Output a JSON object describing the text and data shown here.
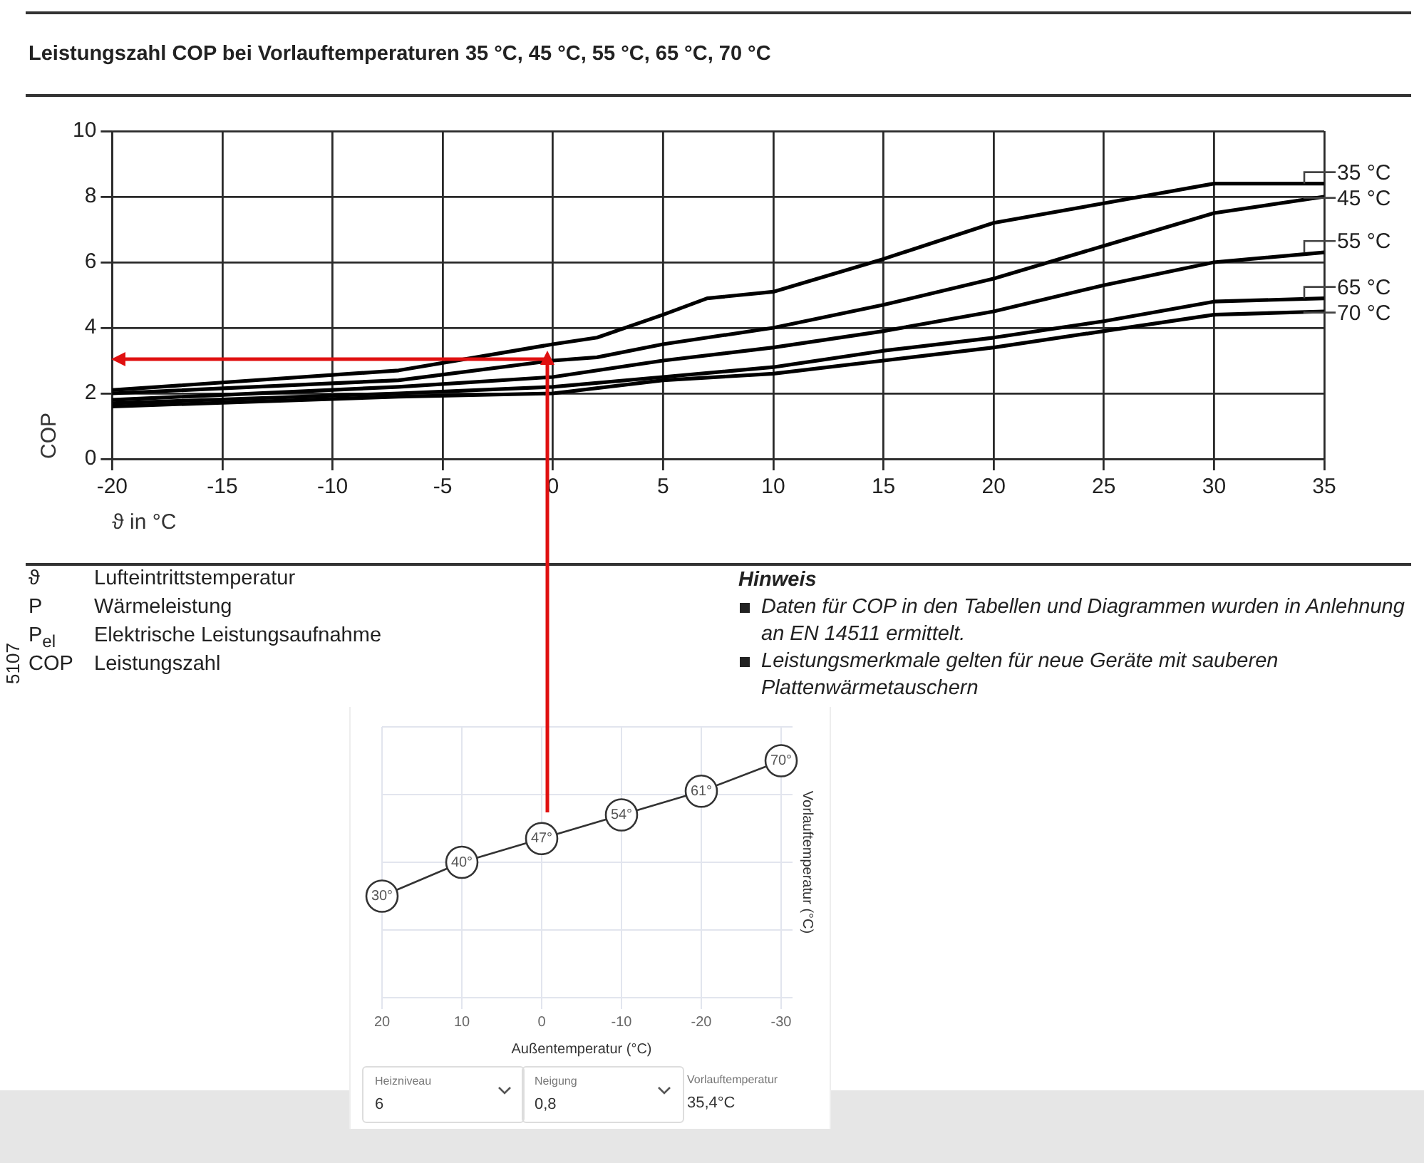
{
  "chart_data": [
    {
      "type": "line",
      "title": "Leistungszahl COP bei Vorlauftemperaturen 35 °C, 45 °C, 55 °C, 65 °C, 70 °C",
      "xlabel": "ϑ in °C",
      "ylabel": "COP",
      "xlim": [
        -20,
        35
      ],
      "xticks": [
        -20,
        -15,
        -10,
        -5,
        0,
        5,
        10,
        15,
        20,
        25,
        30,
        35
      ],
      "ylim": [
        0,
        10
      ],
      "yticks": [
        0,
        2,
        4,
        6,
        8,
        10
      ],
      "grid": true,
      "marker": "none",
      "line_style": "solid",
      "series": [
        {
          "name": "35 °C",
          "color": "#000000",
          "x": [
            -20,
            -7,
            0,
            2,
            5,
            7,
            10,
            15,
            20,
            25,
            30,
            35
          ],
          "values": [
            2.1,
            2.7,
            3.5,
            3.7,
            4.4,
            4.9,
            5.1,
            6.1,
            7.2,
            7.8,
            8.4,
            8.4
          ]
        },
        {
          "name": "45 °C",
          "color": "#000000",
          "x": [
            -20,
            -7,
            0,
            2,
            5,
            7,
            10,
            15,
            20,
            25,
            30,
            35
          ],
          "values": [
            2.0,
            2.4,
            3.0,
            3.1,
            3.5,
            3.7,
            4.0,
            4.7,
            5.5,
            6.5,
            7.5,
            8.0
          ]
        },
        {
          "name": "55 °C",
          "color": "#000000",
          "x": [
            -20,
            -7,
            0,
            5,
            10,
            15,
            20,
            25,
            30,
            35
          ],
          "values": [
            1.8,
            2.2,
            2.5,
            3.0,
            3.4,
            3.9,
            4.5,
            5.3,
            6.0,
            6.3
          ]
        },
        {
          "name": "65 °C",
          "color": "#000000",
          "x": [
            -20,
            -7,
            0,
            5,
            10,
            15,
            20,
            25,
            30,
            35
          ],
          "values": [
            1.7,
            2.0,
            2.2,
            2.5,
            2.8,
            3.3,
            3.7,
            4.2,
            4.8,
            4.9
          ]
        },
        {
          "name": "70 °C",
          "color": "#000000",
          "x": [
            -20,
            -7,
            0,
            5,
            10,
            15,
            20,
            25,
            30,
            35
          ],
          "values": [
            1.6,
            1.9,
            2.0,
            2.4,
            2.6,
            3.0,
            3.4,
            3.9,
            4.4,
            4.5
          ]
        }
      ],
      "annotations": [
        "ϑ",
        "Lufteintrittstemperatur",
        "P",
        "Wärmeleistung",
        "P$_{el}$",
        "Elektrische Leistungsaufnahme",
        "COP",
        "Leistungszahl",
        "Hinweis",
        "Daten für COP in den Tabellen und Diagrammen wurden in Anlehnung an EN 14511 ermittelt.",
        "Leistungsmerkmale gelten für neue Geräte mit sauberen Plattenwärmetauschern",
        "5107"
      ]
    },
    {
      "type": "line",
      "xlabel": "Außentemperatur (°C)",
      "ylabel": "Vorlauftemperatur (°C)",
      "xlim": [
        20,
        -30
      ],
      "xticks": [
        20,
        10,
        0,
        -10,
        -20,
        -30
      ],
      "ylim": [
        0,
        80
      ],
      "yticks": [
        {
          "value": 0,
          "label": null
        },
        {
          "value": 20,
          "label": null
        },
        {
          "value": 40,
          "label": null
        },
        {
          "value": 60,
          "label": null
        },
        {
          "value": 80,
          "label": null
        }
      ],
      "tick_labels": "x",
      "grid": true,
      "marker": "circle",
      "line_style": "solid",
      "series": [
        {
          "color": "#333333",
          "x": [
            20,
            10,
            0,
            -10,
            -20,
            -30
          ],
          "values": [
            30,
            40,
            47,
            54,
            61,
            70
          ],
          "value_labels": [
            "30°",
            "40°",
            "47°",
            "54°",
            "61°",
            "70°"
          ]
        }
      ],
      "annotations": [
        "Heizniveau",
        "6",
        "Neigung",
        "0,8",
        "Vorlauftemperatur",
        "35,4°C"
      ]
    }
  ]
}
